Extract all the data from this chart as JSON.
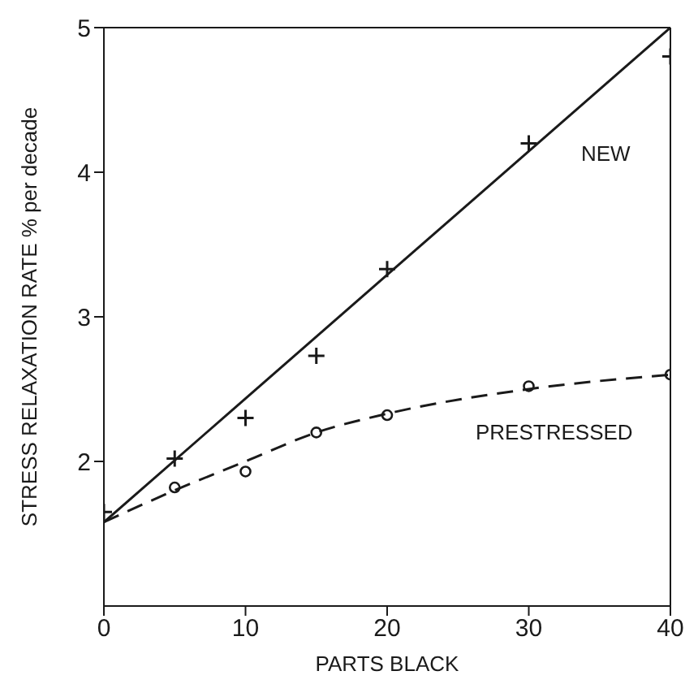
{
  "chart_data": {
    "type": "scatter",
    "xlabel": "PARTS BLACK",
    "ylabel": "STRESS RELAXATION RATE  % per decade",
    "xlim": [
      0,
      40
    ],
    "ylim": [
      1,
      5
    ],
    "xticks": [
      0,
      10,
      20,
      30,
      40
    ],
    "yticks": [
      2,
      3,
      4,
      5
    ],
    "grid": false,
    "legend": false,
    "series": [
      {
        "marker": "cross",
        "color": "#1a1a1a",
        "x": [
          0,
          5,
          10,
          15,
          20,
          30,
          40
        ],
        "values": [
          1.65,
          2.02,
          2.3,
          2.73,
          3.33,
          4.2,
          4.8
        ]
      },
      {
        "type": "line",
        "name": "NEW",
        "marker": "none",
        "line_style": "solid",
        "color": "#1a1a1a",
        "x": [
          0,
          40
        ],
        "values": [
          1.58,
          5.0
        ]
      },
      {
        "marker": "circle",
        "color": "#1a1a1a",
        "x": [
          5,
          10,
          15,
          20,
          30,
          40
        ],
        "values": [
          1.82,
          1.93,
          2.2,
          2.32,
          2.52,
          2.6
        ]
      },
      {
        "type": "line",
        "name": "PRESTRESSED",
        "marker": "none",
        "line_style": "dashed",
        "color": "#1a1a1a",
        "x": [
          0,
          5,
          10,
          15,
          20,
          30,
          40
        ],
        "values": [
          1.58,
          1.8,
          2.0,
          2.2,
          2.33,
          2.5,
          2.6
        ]
      }
    ]
  }
}
